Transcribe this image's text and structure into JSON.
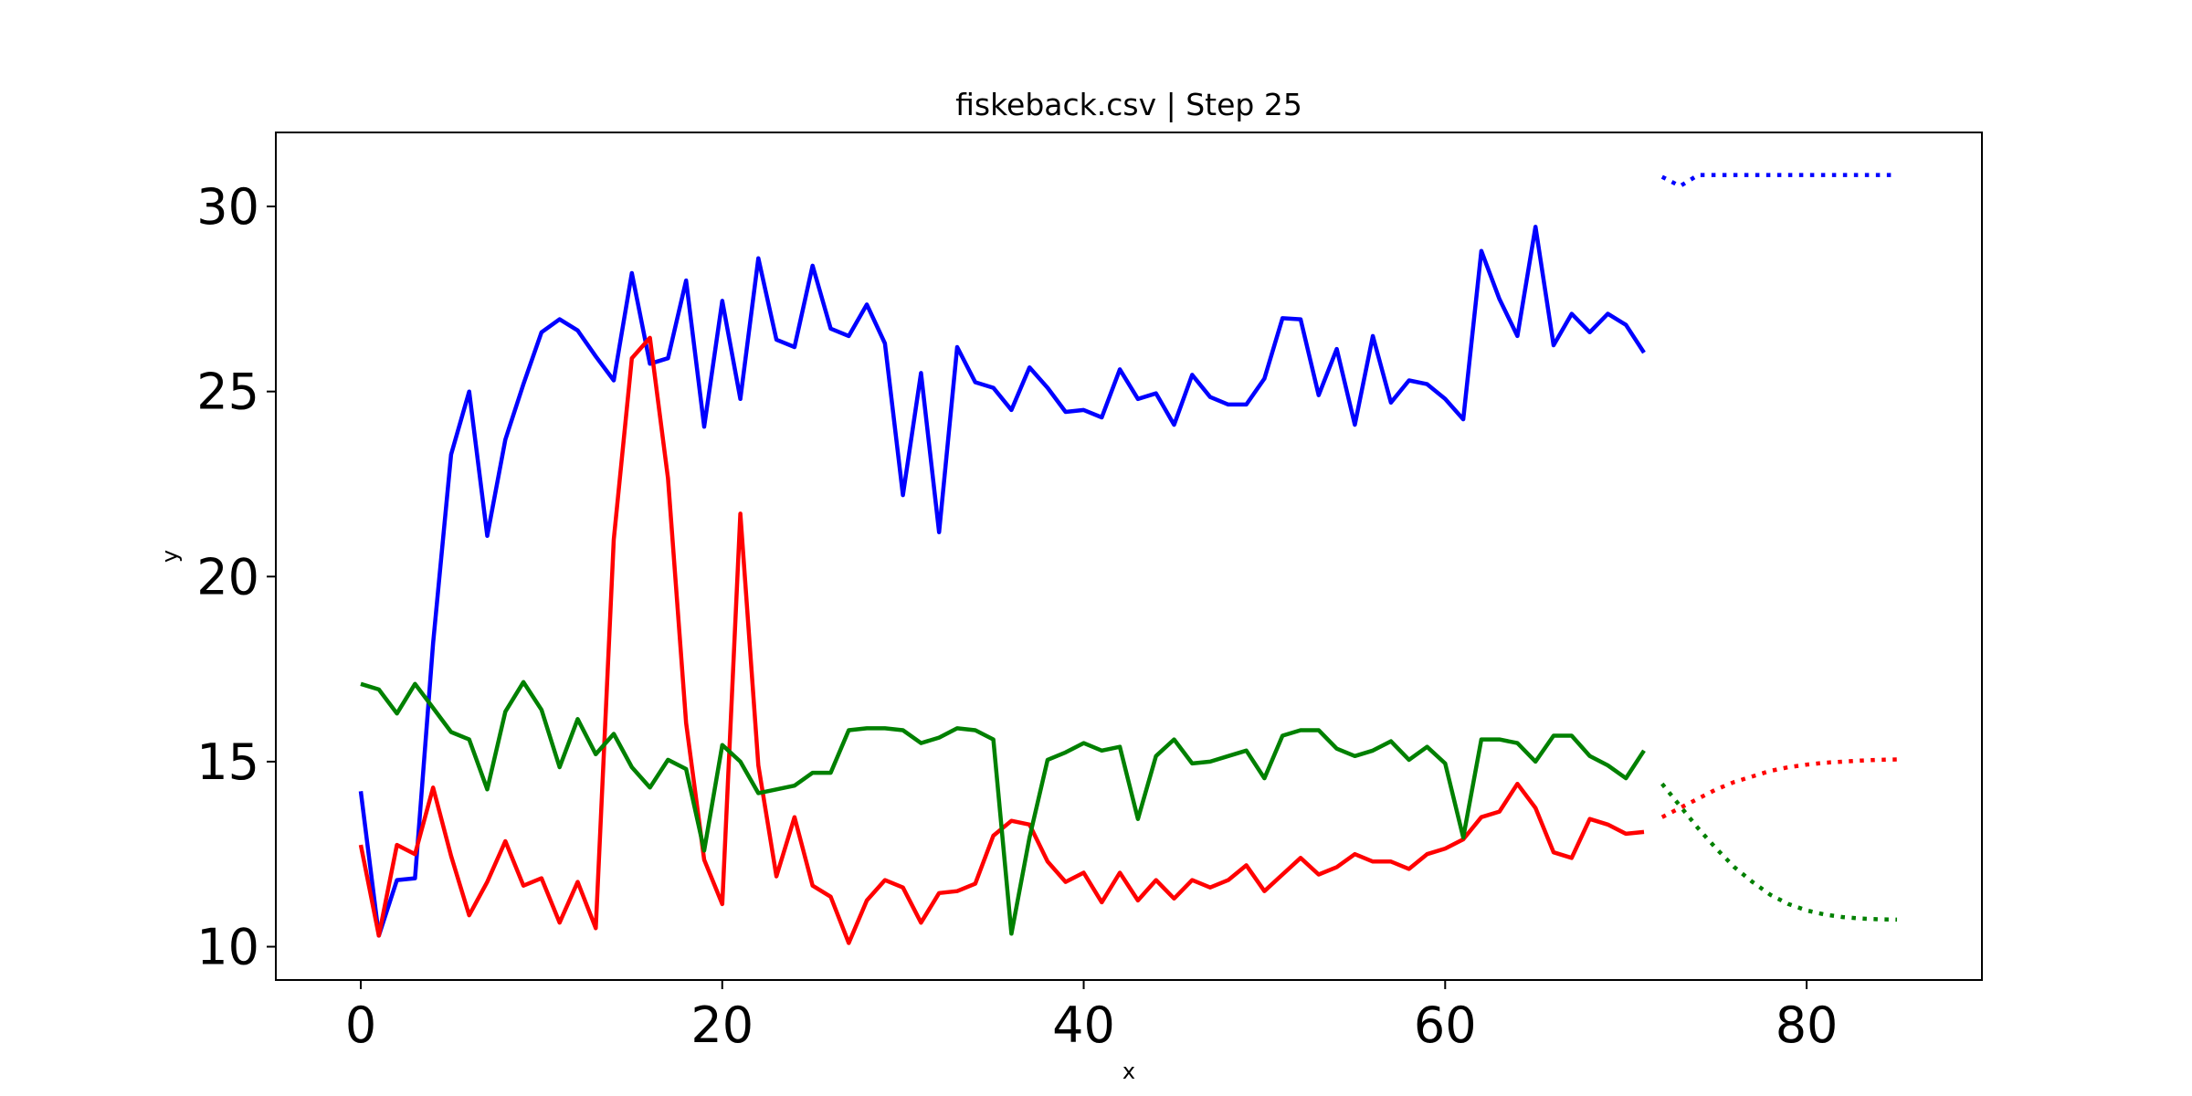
{
  "chart_data": {
    "type": "line",
    "title": "fiskeback.csv | Step 25",
    "xlabel": "x",
    "ylabel": "y",
    "xlim": [
      -4.7,
      89.7
    ],
    "ylim": [
      9.1,
      32.0
    ],
    "xticks": [
      0,
      20,
      40,
      60,
      80
    ],
    "yticks": [
      10,
      15,
      20,
      25,
      30
    ],
    "grid": false,
    "colors": {
      "blue": "#0000ff",
      "red": "#ff0000",
      "green": "#008000"
    },
    "series": [
      {
        "color": "#0000ff",
        "style": "solid",
        "x0": 0,
        "values": [
          14.2,
          10.3,
          11.8,
          11.85,
          18.2,
          23.3,
          25.0,
          21.1,
          23.7,
          25.2,
          26.6,
          26.95,
          26.65,
          25.95,
          25.3,
          28.2,
          25.75,
          25.9,
          28.0,
          24.05,
          27.45,
          24.8,
          28.6,
          26.4,
          26.2,
          28.4,
          26.7,
          26.5,
          27.35,
          26.3,
          22.2,
          25.5,
          21.2,
          26.2,
          25.25,
          25.1,
          24.5,
          25.65,
          25.1,
          24.45,
          24.5,
          24.3,
          25.6,
          24.8,
          24.95,
          24.1,
          25.45,
          24.85,
          24.65,
          24.65,
          25.35,
          26.98,
          26.95,
          24.9,
          26.15,
          24.1,
          26.5,
          24.7,
          25.3,
          25.2,
          24.8,
          24.25,
          28.8,
          27.5,
          26.5,
          29.45,
          26.25,
          27.1,
          26.6,
          27.1,
          26.8,
          26.05
        ]
      },
      {
        "color": "#ff0000",
        "style": "solid",
        "x0": 0,
        "values": [
          12.75,
          10.3,
          12.75,
          12.5,
          14.3,
          12.45,
          10.85,
          11.75,
          12.85,
          11.65,
          11.85,
          10.65,
          11.75,
          10.5,
          21.0,
          25.9,
          26.45,
          22.65,
          16.05,
          12.35,
          11.15,
          21.7,
          14.9,
          11.9,
          13.5,
          11.65,
          11.35,
          10.1,
          11.25,
          11.8,
          11.6,
          10.65,
          11.45,
          11.5,
          11.7,
          13.0,
          13.4,
          13.3,
          12.3,
          11.75,
          12.0,
          11.2,
          12.0,
          11.25,
          11.8,
          11.3,
          11.8,
          11.6,
          11.8,
          12.2,
          11.5,
          11.95,
          12.4,
          11.95,
          12.15,
          12.5,
          12.3,
          12.3,
          12.1,
          12.5,
          12.65,
          12.9,
          13.5,
          13.65,
          14.4,
          13.75,
          12.55,
          12.4,
          13.45,
          13.3,
          13.05,
          13.1
        ]
      },
      {
        "color": "#008000",
        "style": "solid",
        "x0": 0,
        "values": [
          17.1,
          16.95,
          16.3,
          17.1,
          16.45,
          15.8,
          15.6,
          14.25,
          16.35,
          17.15,
          16.4,
          14.85,
          16.15,
          15.2,
          15.75,
          14.85,
          14.3,
          15.05,
          14.8,
          12.6,
          15.45,
          15.0,
          14.15,
          14.25,
          14.35,
          14.7,
          14.7,
          15.85,
          15.9,
          15.9,
          15.85,
          15.5,
          15.65,
          15.9,
          15.85,
          15.6,
          10.35,
          12.95,
          15.05,
          15.25,
          15.5,
          15.3,
          15.4,
          13.45,
          15.15,
          15.6,
          14.95,
          15.0,
          15.15,
          15.3,
          14.55,
          15.7,
          15.85,
          15.85,
          15.35,
          15.15,
          15.3,
          15.55,
          15.05,
          15.4,
          14.95,
          12.95,
          15.6,
          15.6,
          15.5,
          15.0,
          15.7,
          15.7,
          15.15,
          14.9,
          14.55,
          15.3
        ]
      },
      {
        "color": "#0000ff",
        "style": "dotted",
        "x0": 72,
        "values": [
          30.8,
          30.55,
          30.85,
          30.85,
          30.85,
          30.85,
          30.85,
          30.85,
          30.85,
          30.85,
          30.85,
          30.85,
          30.85,
          30.85
        ]
      },
      {
        "color": "#ff0000",
        "style": "dotted",
        "x0": 72,
        "values": [
          13.5,
          13.75,
          14.0,
          14.25,
          14.45,
          14.6,
          14.75,
          14.85,
          14.92,
          14.97,
          15.0,
          15.03,
          15.05,
          15.06
        ]
      },
      {
        "color": "#008000",
        "style": "dotted",
        "x0": 72,
        "values": [
          14.4,
          13.8,
          13.2,
          12.65,
          12.15,
          11.75,
          11.4,
          11.15,
          10.98,
          10.87,
          10.8,
          10.76,
          10.74,
          10.73
        ]
      }
    ]
  }
}
